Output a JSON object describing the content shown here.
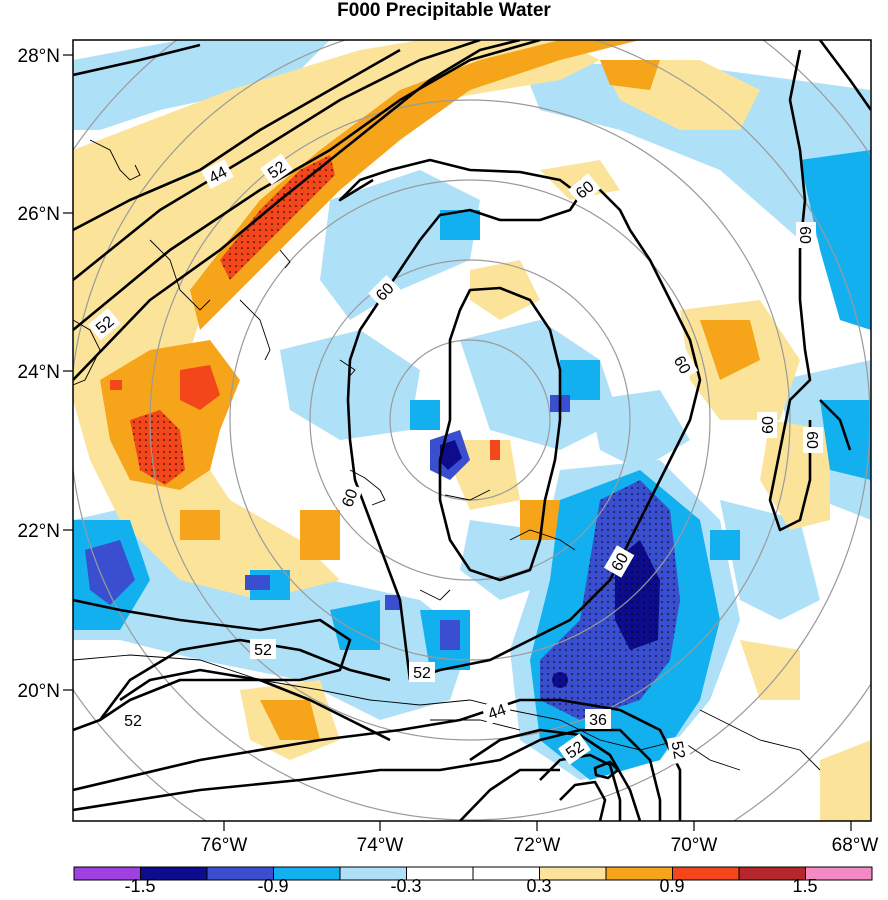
{
  "title": "F000 Precipitable Water",
  "lat_labels": [
    "28°N",
    "26°N",
    "24°N",
    "22°N",
    "20°N"
  ],
  "lon_labels": [
    "76°W",
    "74°W",
    "72°W",
    "70°W",
    "68°W"
  ],
  "colorbar": {
    "labels": [
      "-1.5",
      "-0.9",
      "-0.3",
      "0.3",
      "0.9",
      "1.5"
    ],
    "colors": [
      "#a040e0",
      "#0c0c8c",
      "#3a4fd0",
      "#13b0f0",
      "#aee0f8",
      "#ffffff",
      "#ffffff",
      "#fbe49a",
      "#f6a41a",
      "#f3461b",
      "#b6272b",
      "#f589c3"
    ]
  },
  "contour_labels": [
    "44",
    "52",
    "52",
    "60",
    "60",
    "60",
    "60",
    "60",
    "60",
    "60",
    "60",
    "52",
    "52",
    "52",
    "44",
    "36",
    "52"
  ],
  "colors": {
    "contour": "#000000",
    "rings": "#9a9a9a",
    "coast": "#000000"
  }
}
